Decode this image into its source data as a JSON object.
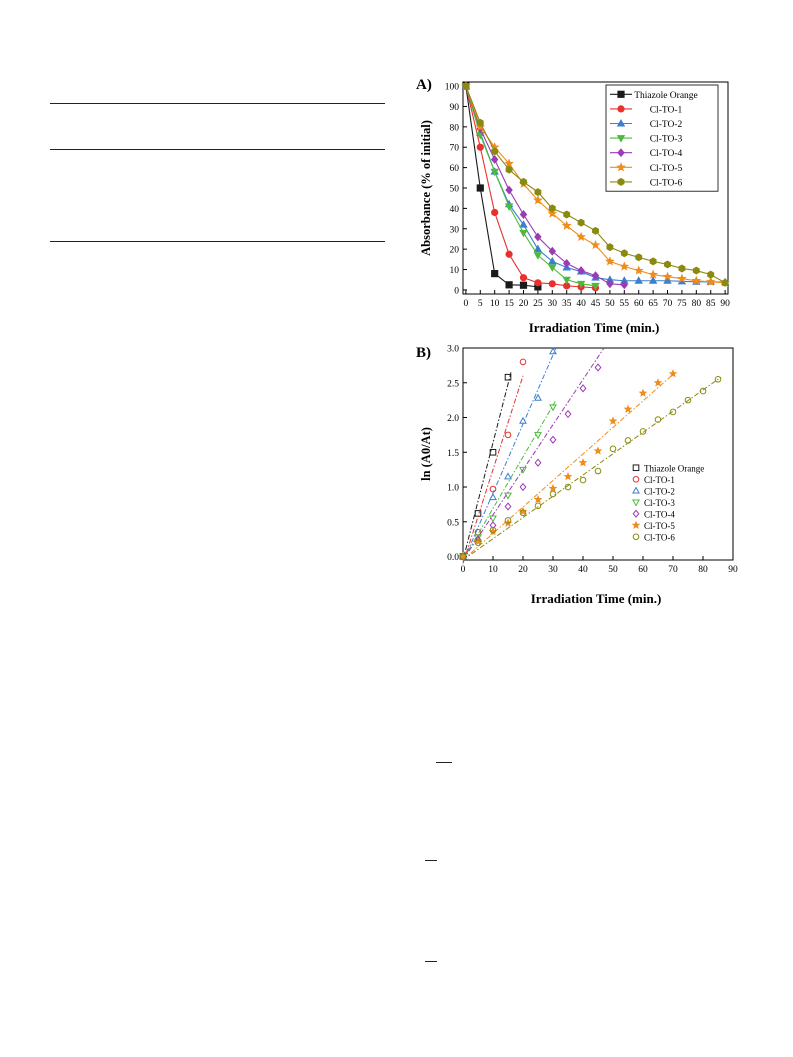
{
  "charts": {
    "A": {
      "panel_label": "A)",
      "ylabel": "Absorbance (% of initial)",
      "xlabel": "Irradiation Time (min.)"
    },
    "B": {
      "panel_label": "B)",
      "ylabel": "ln (A0/At)",
      "xlabel": "Irradiation Time (min.)"
    }
  },
  "chart_data": [
    {
      "type": "line",
      "title": "",
      "panel_label": "A)",
      "xlabel": "Irradiation Time (min.)",
      "ylabel": "Absorbance (% of initial)",
      "xlim": [
        -1,
        91
      ],
      "ylim": [
        -2,
        102
      ],
      "xticks": [
        0,
        5,
        10,
        15,
        20,
        25,
        30,
        35,
        40,
        45,
        50,
        55,
        60,
        65,
        70,
        75,
        80,
        85,
        90
      ],
      "yticks": [
        0,
        10,
        20,
        30,
        40,
        50,
        60,
        70,
        80,
        90,
        100
      ],
      "grid": false,
      "legend_position": "top-right",
      "series": [
        {
          "name": "Thiazole Orange",
          "color": "#1a1a1a",
          "marker": "square",
          "x": [
            0,
            5,
            10,
            15,
            20,
            25
          ],
          "y": [
            100,
            50,
            8,
            2.5,
            2.3,
            1.5
          ]
        },
        {
          "name": "Cl-TO-1",
          "color": "#e8302f",
          "marker": "circle",
          "x": [
            0,
            5,
            10,
            15,
            20,
            25,
            30,
            35,
            40,
            45
          ],
          "y": [
            100,
            70,
            38,
            17.5,
            6,
            3.5,
            3,
            2,
            1.5,
            1
          ]
        },
        {
          "name": "Cl-TO-2",
          "color": "#3a7fd0",
          "marker": "triangle-up",
          "x": [
            0,
            5,
            10,
            15,
            20,
            25,
            30,
            35,
            40,
            45,
            50,
            55,
            60,
            65,
            70,
            75,
            80,
            85,
            90
          ],
          "y": [
            100,
            77,
            58,
            42,
            32,
            20,
            14,
            11,
            9,
            6,
            5,
            4.5,
            4.5,
            4.5,
            4.5,
            4.2,
            4,
            4,
            3.8
          ]
        },
        {
          "name": "Cl-TO-3",
          "color": "#4cbb3c",
          "marker": "triangle-down",
          "x": [
            0,
            5,
            10,
            15,
            20,
            25,
            30,
            35,
            40,
            45
          ],
          "y": [
            100,
            76,
            58,
            41,
            28,
            17,
            11,
            5,
            3,
            2
          ]
        },
        {
          "name": "Cl-TO-4",
          "color": "#9b3bb5",
          "marker": "diamond",
          "x": [
            0,
            5,
            10,
            15,
            20,
            25,
            30,
            35,
            40,
            45,
            50,
            55
          ],
          "y": [
            100,
            79,
            64,
            49,
            37,
            26,
            19,
            13,
            9.5,
            7,
            3,
            2.5
          ]
        },
        {
          "name": "Cl-TO-5",
          "color": "#f08c1c",
          "marker": "star",
          "x": [
            0,
            5,
            10,
            15,
            20,
            25,
            30,
            35,
            40,
            45,
            50,
            55,
            60,
            65,
            70,
            75,
            80,
            85,
            90
          ],
          "y": [
            100,
            80,
            70,
            62,
            52,
            44,
            37.5,
            31.5,
            26,
            22,
            14,
            11.5,
            9.5,
            7.5,
            6.5,
            5.5,
            4.5,
            4,
            3.5
          ]
        },
        {
          "name": "Cl-TO-6",
          "color": "#8a8a10",
          "marker": "hexagon",
          "x": [
            0,
            5,
            10,
            15,
            20,
            25,
            30,
            35,
            40,
            45,
            50,
            55,
            60,
            65,
            70,
            75,
            80,
            85,
            90
          ],
          "y": [
            100,
            82,
            68,
            59,
            53,
            48,
            40,
            37,
            33,
            29,
            21,
            18,
            16,
            14,
            12.5,
            10.5,
            9.5,
            7.5,
            3.5
          ]
        }
      ]
    },
    {
      "type": "scatter",
      "title": "",
      "panel_label": "B)",
      "xlabel": "Irradiation Time (min.)",
      "ylabel": "ln (A0/At)",
      "xlim": [
        0,
        90
      ],
      "ylim": [
        -0.05,
        3.0
      ],
      "xticks": [
        0,
        10,
        20,
        30,
        40,
        50,
        60,
        70,
        80,
        90
      ],
      "yticks": [
        0.0,
        0.5,
        1.0,
        1.5,
        2.0,
        2.5,
        3.0
      ],
      "ytick_labels": [
        "0.0",
        "0.5",
        "1.0",
        "1.5",
        "2.0",
        "2.5",
        "3.0"
      ],
      "grid": false,
      "legend_position": "bottom-right",
      "series": [
        {
          "name": "Thiazole Orange",
          "color": "#1a1a1a",
          "marker": "square-open",
          "x": [
            0,
            5,
            10,
            15
          ],
          "y": [
            0,
            0.62,
            1.5,
            2.58
          ],
          "fit": [
            [
              0,
              -0.05
            ],
            [
              16,
              2.65
            ]
          ]
        },
        {
          "name": "Cl-TO-1",
          "color": "#e8302f",
          "marker": "circle-open",
          "x": [
            0,
            5,
            10,
            15,
            20
          ],
          "y": [
            0,
            0.35,
            0.97,
            1.75,
            2.8
          ],
          "fit": [
            [
              0,
              -0.1
            ],
            [
              20,
              2.6
            ]
          ]
        },
        {
          "name": "Cl-TO-2",
          "color": "#3a7fd0",
          "marker": "triangle-up-open",
          "x": [
            0,
            5,
            10,
            15,
            20,
            25,
            30
          ],
          "y": [
            0,
            0.25,
            0.85,
            1.15,
            1.95,
            2.28,
            2.95
          ],
          "fit": [
            [
              0,
              -0.08
            ],
            [
              31,
              3.0
            ]
          ]
        },
        {
          "name": "Cl-TO-3",
          "color": "#4cbb3c",
          "marker": "triangle-down-open",
          "x": [
            0,
            5,
            10,
            15,
            20,
            25,
            30
          ],
          "y": [
            0,
            0.28,
            0.55,
            0.88,
            1.25,
            1.75,
            2.15
          ],
          "fit": [
            [
              0,
              -0.05
            ],
            [
              31,
              2.25
            ]
          ]
        },
        {
          "name": "Cl-TO-4",
          "color": "#9b3bb5",
          "marker": "diamond-open",
          "x": [
            0,
            5,
            10,
            15,
            20,
            25,
            30,
            35,
            40,
            45
          ],
          "y": [
            0,
            0.24,
            0.45,
            0.72,
            1.0,
            1.35,
            1.68,
            2.05,
            2.42,
            2.72
          ],
          "fit": [
            [
              0,
              -0.05
            ],
            [
              47,
              3.0
            ]
          ]
        },
        {
          "name": "Cl-TO-5",
          "color": "#f08c1c",
          "marker": "star",
          "x": [
            0,
            5,
            10,
            15,
            20,
            25,
            30,
            35,
            40,
            45,
            50,
            55,
            60,
            65,
            70
          ],
          "y": [
            0,
            0.22,
            0.36,
            0.48,
            0.65,
            0.82,
            0.98,
            1.15,
            1.35,
            1.52,
            1.95,
            2.12,
            2.35,
            2.5,
            2.63
          ],
          "fit": [
            [
              0,
              -0.05
            ],
            [
              70,
              2.62
            ]
          ]
        },
        {
          "name": "Cl-TO-6",
          "color": "#8a8a10",
          "marker": "circle-open",
          "x": [
            0,
            5,
            10,
            15,
            20,
            25,
            30,
            35,
            40,
            45,
            50,
            55,
            60,
            65,
            70,
            75,
            80,
            85
          ],
          "y": [
            0,
            0.2,
            0.38,
            0.52,
            0.63,
            0.73,
            0.9,
            1.0,
            1.1,
            1.23,
            1.55,
            1.67,
            1.8,
            1.97,
            2.08,
            2.25,
            2.38,
            2.55
          ],
          "fit": [
            [
              0,
              -0.05
            ],
            [
              86,
              2.58
            ]
          ]
        }
      ]
    }
  ]
}
